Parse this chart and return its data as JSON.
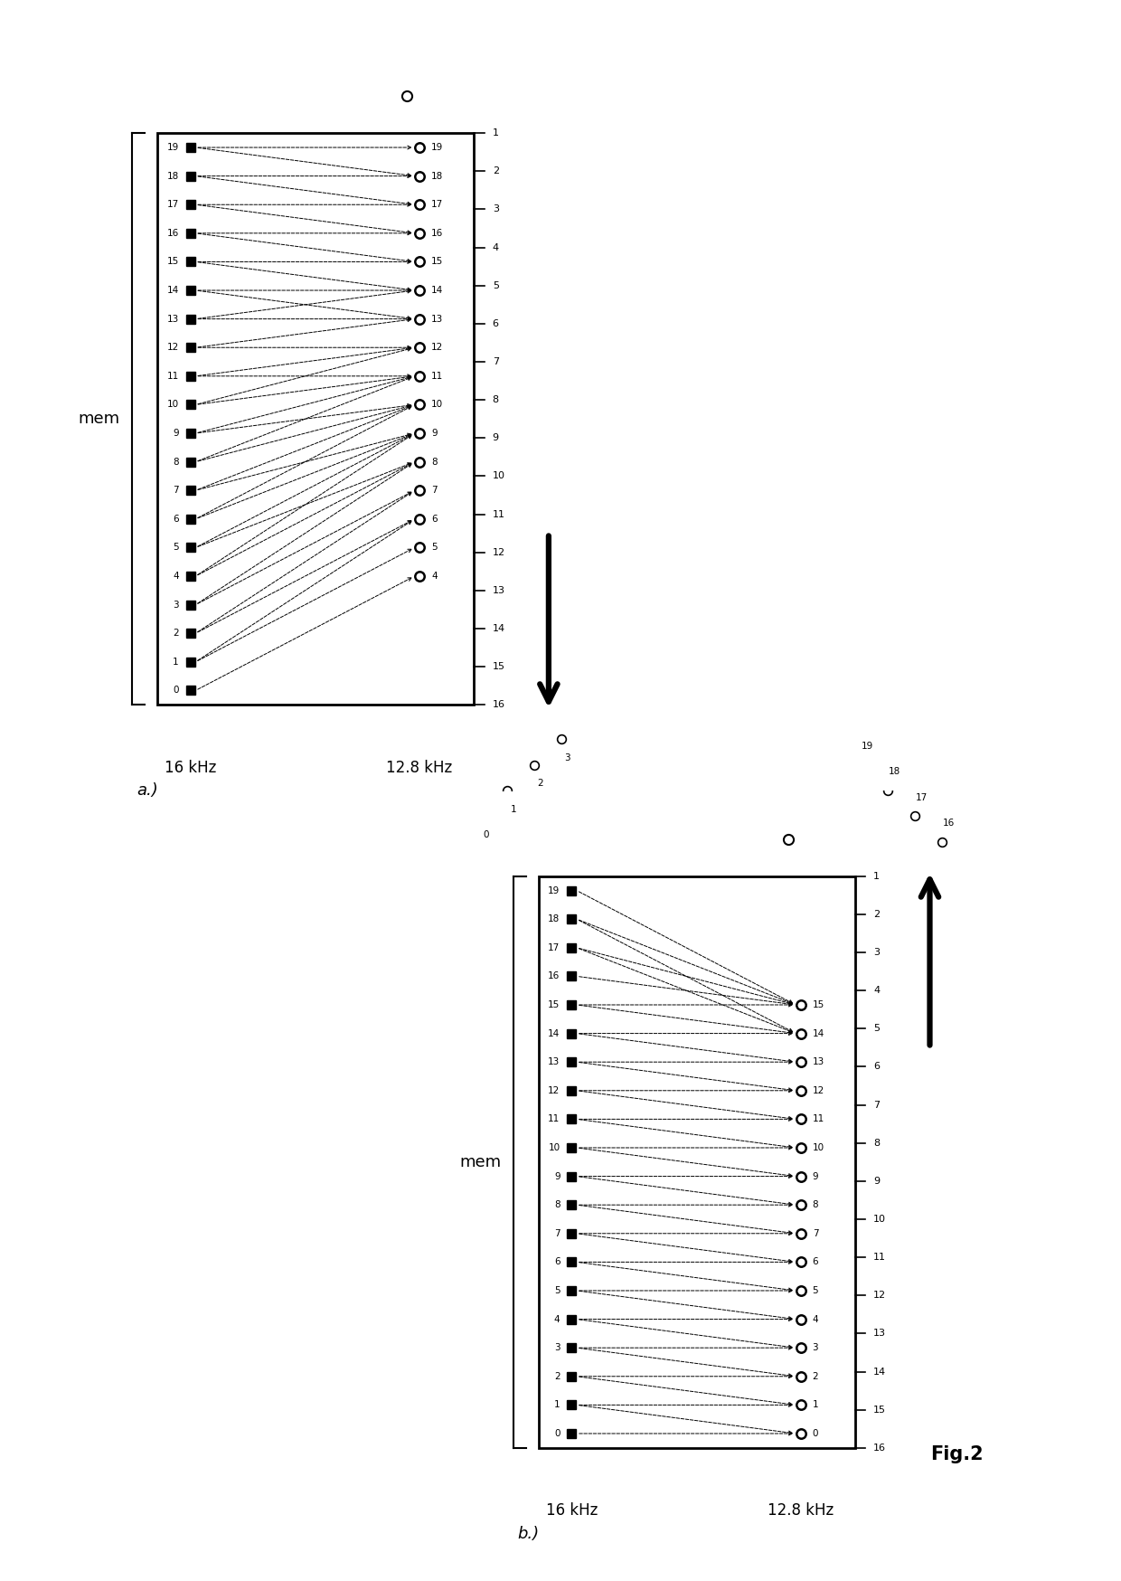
{
  "fig_width": 12.4,
  "fig_height": 17.48,
  "panel_a": {
    "label": "a.)",
    "mem_label": "mem",
    "freq_hi": "16 kHz",
    "freq_lo": "12.8 kHz",
    "sq_indices": [
      0,
      1,
      2,
      3,
      4,
      5,
      6,
      7,
      8,
      9,
      10,
      11,
      12,
      13,
      14,
      15,
      16,
      17,
      18,
      19
    ],
    "ci_indices": [
      4,
      5,
      6,
      7,
      8,
      9,
      10,
      11,
      12,
      13,
      14,
      15,
      16,
      17,
      18,
      19
    ],
    "extra_ci": [
      3,
      2,
      1,
      0
    ],
    "extra_ci_labels": [
      3,
      2,
      1,
      0
    ],
    "arrow_dir": "down",
    "box_tick_labels": [
      1,
      2,
      3,
      4,
      5,
      6,
      7,
      8,
      9,
      10,
      11,
      12,
      13,
      14,
      15,
      16
    ],
    "connections_sq_to_ci": [
      [
        0,
        4
      ],
      [
        1,
        5
      ],
      [
        1,
        6
      ],
      [
        2,
        6
      ],
      [
        2,
        7
      ],
      [
        3,
        7
      ],
      [
        3,
        8
      ],
      [
        4,
        8
      ],
      [
        4,
        9
      ],
      [
        5,
        8
      ],
      [
        5,
        9
      ],
      [
        6,
        9
      ],
      [
        6,
        10
      ],
      [
        7,
        9
      ],
      [
        7,
        10
      ],
      [
        8,
        10
      ],
      [
        8,
        11
      ],
      [
        9,
        10
      ],
      [
        9,
        11
      ],
      [
        10,
        11
      ],
      [
        10,
        12
      ],
      [
        11,
        11
      ],
      [
        11,
        12
      ],
      [
        12,
        12
      ],
      [
        12,
        13
      ],
      [
        13,
        13
      ],
      [
        13,
        14
      ],
      [
        14,
        13
      ],
      [
        14,
        14
      ],
      [
        15,
        14
      ],
      [
        15,
        15
      ],
      [
        16,
        15
      ],
      [
        16,
        16
      ],
      [
        17,
        16
      ],
      [
        17,
        17
      ],
      [
        18,
        17
      ],
      [
        18,
        18
      ],
      [
        19,
        18
      ],
      [
        19,
        19
      ]
    ]
  },
  "panel_b": {
    "label": "b.)",
    "mem_label": "mem",
    "freq_hi": "16 kHz",
    "freq_lo": "12.8 kHz",
    "sq_indices": [
      0,
      1,
      2,
      3,
      4,
      5,
      6,
      7,
      8,
      9,
      10,
      11,
      12,
      13,
      14,
      15,
      16,
      17,
      18,
      19
    ],
    "ci_indices": [
      0,
      1,
      2,
      3,
      4,
      5,
      6,
      7,
      8,
      9,
      10,
      11,
      12,
      13,
      14,
      15
    ],
    "extra_ci": [
      16,
      17,
      18,
      19
    ],
    "extra_ci_labels": [
      16,
      17,
      18,
      19
    ],
    "arrow_dir": "up",
    "box_tick_labels": [
      1,
      2,
      3,
      4,
      5,
      6,
      7,
      8,
      9,
      10,
      11,
      12,
      13,
      14,
      15,
      16
    ],
    "connections_sq_to_ci": [
      [
        0,
        0
      ],
      [
        1,
        0
      ],
      [
        1,
        1
      ],
      [
        2,
        1
      ],
      [
        2,
        2
      ],
      [
        3,
        2
      ],
      [
        3,
        3
      ],
      [
        4,
        3
      ],
      [
        4,
        4
      ],
      [
        5,
        4
      ],
      [
        5,
        5
      ],
      [
        6,
        5
      ],
      [
        6,
        6
      ],
      [
        7,
        6
      ],
      [
        7,
        7
      ],
      [
        8,
        7
      ],
      [
        8,
        8
      ],
      [
        9,
        8
      ],
      [
        9,
        9
      ],
      [
        10,
        9
      ],
      [
        10,
        10
      ],
      [
        11,
        10
      ],
      [
        11,
        11
      ],
      [
        12,
        11
      ],
      [
        12,
        12
      ],
      [
        13,
        12
      ],
      [
        13,
        13
      ],
      [
        14,
        13
      ],
      [
        14,
        14
      ],
      [
        15,
        14
      ],
      [
        15,
        15
      ],
      [
        16,
        15
      ],
      [
        17,
        14
      ],
      [
        17,
        15
      ],
      [
        18,
        14
      ],
      [
        18,
        15
      ],
      [
        19,
        15
      ]
    ]
  },
  "fig2_label": "Fig.2"
}
